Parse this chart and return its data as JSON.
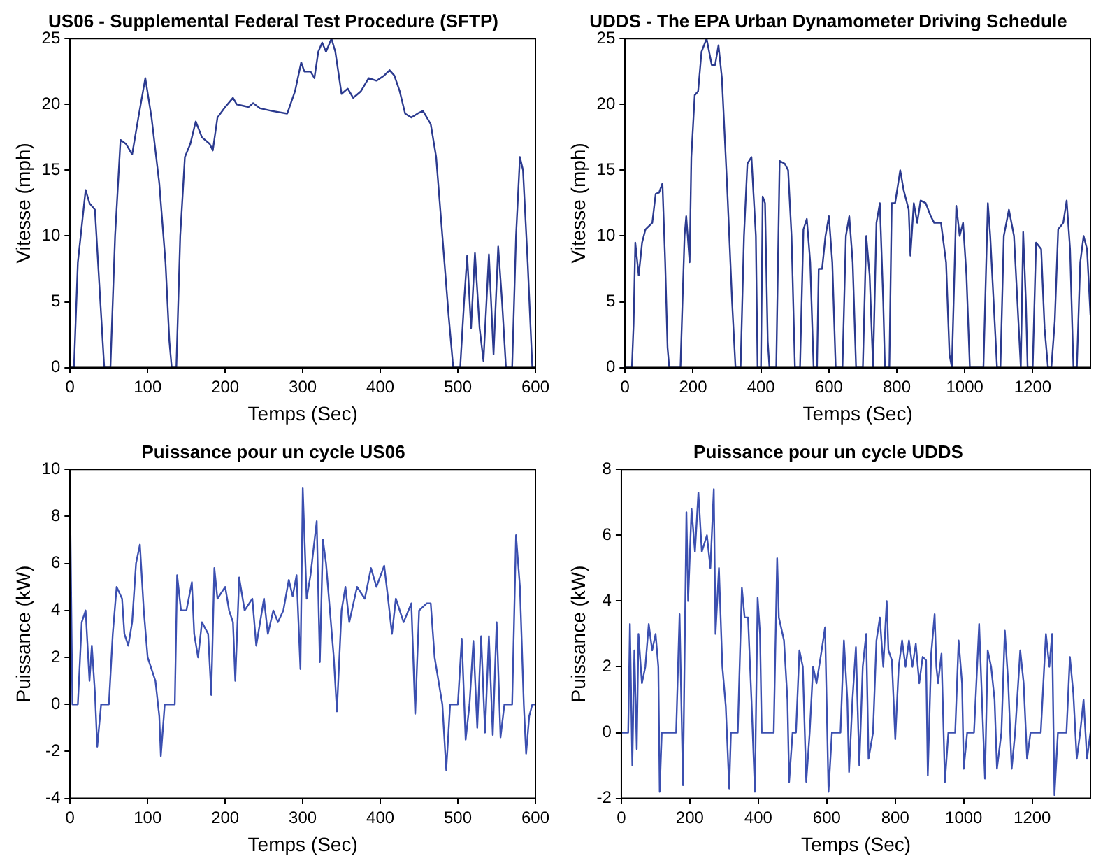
{
  "chart_data": [
    {
      "type": "line",
      "title": "US06 - Supplemental Federal Test Procedure (SFTP)",
      "xlabel": "Temps (Sec)",
      "ylabel": "Vitesse (mph)",
      "xlim": [
        0,
        600
      ],
      "xticks": [
        0,
        100,
        200,
        300,
        400,
        500,
        600
      ],
      "ylim": [
        0,
        25
      ],
      "yticks": [
        0,
        5,
        10,
        15,
        20,
        25
      ],
      "grid": false,
      "legend": false,
      "marker": "none",
      "line_style": "solid",
      "color": "#2b3a8f",
      "x": [
        0,
        5,
        10,
        20,
        25,
        32,
        40,
        44,
        52,
        58,
        65,
        72,
        80,
        88,
        97,
        105,
        115,
        123,
        128,
        131,
        137,
        142,
        148,
        155,
        162,
        170,
        180,
        184,
        190,
        200,
        210,
        215,
        230,
        236,
        245,
        260,
        280,
        290,
        298,
        302,
        310,
        315,
        320,
        325,
        330,
        337,
        342,
        350,
        358,
        365,
        375,
        385,
        395,
        405,
        412,
        418,
        425,
        432,
        440,
        448,
        455,
        465,
        472,
        480,
        488,
        494,
        503,
        508,
        512,
        517,
        522,
        528,
        533,
        540,
        546,
        552,
        557,
        562,
        570,
        575,
        580,
        584,
        590,
        596,
        600
      ],
      "values": [
        0,
        0,
        8,
        13.5,
        12.5,
        12,
        4,
        0,
        0,
        10,
        17.3,
        17,
        16.2,
        19,
        22,
        19,
        14,
        8,
        2,
        0,
        0,
        10,
        16,
        17,
        18.7,
        17.5,
        17,
        16.5,
        19,
        19.8,
        20.5,
        20,
        19.8,
        20.1,
        19.7,
        19.5,
        19.3,
        21,
        23.2,
        22.5,
        22.5,
        22,
        24,
        24.7,
        24,
        25,
        24,
        20.8,
        21.2,
        20.5,
        21,
        22,
        21.8,
        22.2,
        22.6,
        22.2,
        21,
        19.3,
        19,
        19.3,
        19.5,
        18.5,
        16,
        10,
        4,
        0,
        0,
        5,
        8.5,
        3,
        8.7,
        3,
        0.5,
        8.6,
        1,
        9.2,
        5,
        0,
        0,
        10,
        16,
        15,
        8,
        0,
        0
      ]
    },
    {
      "type": "line",
      "title": "UDDS - The EPA Urban Dynamometer Driving Schedule",
      "xlabel": "Temps (Sec)",
      "ylabel": "Vitesse (mph)",
      "xlim": [
        0,
        1370
      ],
      "xticks": [
        0,
        200,
        400,
        600,
        800,
        1000,
        1200
      ],
      "ylim": [
        0,
        25
      ],
      "yticks": [
        0,
        5,
        10,
        15,
        20,
        25
      ],
      "grid": false,
      "legend": false,
      "marker": "none",
      "line_style": "solid",
      "color": "#2b3a8f",
      "x": [
        0,
        20,
        25,
        30,
        40,
        50,
        60,
        80,
        90,
        100,
        110,
        118,
        125,
        130,
        163,
        175,
        180,
        190,
        195,
        205,
        215,
        225,
        240,
        255,
        265,
        275,
        285,
        300,
        315,
        325,
        340,
        350,
        360,
        372,
        385,
        390,
        400,
        405,
        412,
        420,
        425,
        445,
        455,
        470,
        480,
        490,
        500,
        515,
        525,
        535,
        545,
        555,
        565,
        570,
        580,
        590,
        600,
        610,
        620,
        640,
        650,
        660,
        670,
        680,
        700,
        710,
        720,
        730,
        740,
        750,
        760,
        765,
        778,
        785,
        795,
        810,
        820,
        835,
        840,
        850,
        860,
        870,
        885,
        900,
        910,
        930,
        945,
        955,
        962,
        975,
        985,
        995,
        1005,
        1015,
        1055,
        1068,
        1075,
        1085,
        1095,
        1105,
        1115,
        1130,
        1145,
        1155,
        1165,
        1172,
        1180,
        1185,
        1200,
        1210,
        1225,
        1235,
        1245,
        1255,
        1265,
        1275,
        1290,
        1300,
        1310,
        1320,
        1330,
        1340,
        1350,
        1360,
        1370
      ],
      "values": [
        0,
        0,
        3.3,
        9.5,
        7,
        9.5,
        10.5,
        11,
        13.2,
        13.3,
        14,
        8,
        1.5,
        0,
        0,
        10,
        11.5,
        8,
        16,
        20.7,
        21,
        24,
        25,
        23,
        23,
        24.5,
        22,
        14,
        5,
        0,
        0,
        10,
        15.5,
        16,
        10,
        0,
        0,
        13,
        12.5,
        2,
        0,
        0,
        15.7,
        15.5,
        15,
        10,
        0,
        0,
        10.5,
        11.3,
        8,
        0,
        0,
        7.5,
        7.5,
        10,
        11.5,
        8,
        0,
        0,
        10,
        11.5,
        8,
        0,
        0,
        10,
        7,
        0,
        11,
        12.5,
        5,
        0,
        0,
        12.5,
        12.5,
        15,
        13.5,
        12,
        8.5,
        12.5,
        11,
        12.7,
        12.5,
        11.5,
        11,
        11,
        8,
        1,
        0,
        12.3,
        10,
        11,
        7,
        0,
        0,
        12.5,
        10,
        5,
        0,
        0,
        10,
        12,
        10,
        5,
        0,
        10.3,
        5,
        0,
        0,
        9.5,
        9,
        3,
        0,
        0,
        3.5,
        10.5,
        11,
        12.7,
        9,
        0,
        0,
        8,
        10,
        9,
        4
      ]
    },
    {
      "type": "line",
      "title": "Puissance pour un cycle US06",
      "xlabel": "Temps (Sec)",
      "ylabel": "Puissance (kW)",
      "xlim": [
        0,
        600
      ],
      "xticks": [
        0,
        100,
        200,
        300,
        400,
        500,
        600
      ],
      "ylim": [
        -4,
        10
      ],
      "yticks": [
        -4,
        -2,
        0,
        2,
        4,
        6,
        8,
        10
      ],
      "grid": false,
      "legend": false,
      "marker": "none",
      "line_style": "solid",
      "color": "#3b4fb0",
      "x": [
        0,
        3,
        10,
        15,
        20,
        25,
        28,
        32,
        35,
        40,
        50,
        55,
        60,
        67,
        70,
        75,
        80,
        85,
        90,
        95,
        100,
        105,
        110,
        115,
        117,
        122,
        135,
        138,
        143,
        150,
        157,
        160,
        165,
        170,
        178,
        182,
        186,
        190,
        200,
        205,
        210,
        213,
        218,
        225,
        235,
        240,
        250,
        255,
        262,
        268,
        275,
        282,
        287,
        292,
        297,
        300,
        305,
        310,
        318,
        322,
        326,
        330,
        335,
        340,
        344,
        350,
        355,
        360,
        370,
        380,
        388,
        395,
        405,
        410,
        415,
        420,
        430,
        440,
        445,
        450,
        460,
        465,
        470,
        475,
        480,
        485,
        490,
        500,
        505,
        510,
        515,
        520,
        525,
        530,
        535,
        540,
        545,
        550,
        555,
        560,
        570,
        575,
        580,
        585,
        588,
        592,
        596,
        600
      ],
      "values": [
        8.6,
        0,
        0,
        3.5,
        4,
        1,
        2.5,
        0.5,
        -1.8,
        0,
        0,
        3,
        5,
        4.5,
        3,
        2.5,
        3.5,
        6,
        6.8,
        4,
        2,
        1.5,
        1,
        -0.5,
        -2.2,
        0,
        0,
        5.5,
        4,
        4,
        5.2,
        3,
        2,
        3.5,
        3,
        0.4,
        5.8,
        4.5,
        5,
        4,
        3.5,
        1,
        5.4,
        4,
        4.5,
        2.5,
        4.5,
        3,
        4,
        3.5,
        4,
        5.3,
        4.6,
        5.5,
        1.5,
        9.2,
        4.5,
        5.5,
        7.8,
        1.8,
        7,
        6,
        4,
        2,
        -0.3,
        4,
        5,
        3.5,
        5,
        4.5,
        5.8,
        5,
        5.9,
        4.5,
        3,
        4.5,
        3.5,
        4.3,
        -0.4,
        4,
        4.3,
        4.3,
        2,
        1,
        0,
        -2.8,
        0,
        0,
        2.8,
        -1.5,
        0,
        2.7,
        -1,
        2.9,
        -1.2,
        2.9,
        -1.3,
        3.5,
        -1.4,
        0,
        0,
        7.2,
        5,
        0,
        -2.1,
        -0.5,
        0,
        0
      ]
    },
    {
      "type": "line",
      "title": "Puissance pour un cycle UDDS",
      "xlabel": "Temps (Sec)",
      "ylabel": "Puissance (kW)",
      "xlim": [
        0,
        1370
      ],
      "xticks": [
        0,
        200,
        400,
        600,
        800,
        1000,
        1200
      ],
      "ylim": [
        -2,
        8
      ],
      "yticks": [
        -2,
        0,
        2,
        4,
        6,
        8
      ],
      "grid": false,
      "legend": false,
      "marker": "none",
      "line_style": "solid",
      "color": "#3b4fb0",
      "x": [
        0,
        20,
        25,
        32,
        38,
        45,
        50,
        60,
        70,
        80,
        90,
        100,
        108,
        112,
        118,
        160,
        170,
        180,
        190,
        195,
        205,
        215,
        225,
        235,
        250,
        260,
        270,
        275,
        285,
        295,
        305,
        315,
        320,
        340,
        352,
        360,
        370,
        380,
        390,
        398,
        405,
        410,
        445,
        455,
        460,
        475,
        485,
        490,
        500,
        510,
        520,
        530,
        540,
        550,
        560,
        570,
        585,
        595,
        605,
        615,
        640,
        650,
        660,
        665,
        675,
        685,
        695,
        705,
        715,
        722,
        735,
        745,
        755,
        765,
        775,
        780,
        790,
        800,
        810,
        820,
        830,
        840,
        850,
        860,
        870,
        880,
        890,
        895,
        905,
        915,
        920,
        925,
        935,
        945,
        955,
        975,
        985,
        995,
        1000,
        1010,
        1030,
        1045,
        1055,
        1062,
        1070,
        1080,
        1090,
        1097,
        1110,
        1120,
        1130,
        1140,
        1150,
        1165,
        1175,
        1185,
        1195,
        1225,
        1240,
        1250,
        1258,
        1265,
        1275,
        1300,
        1310,
        1320,
        1330,
        1340,
        1350,
        1360,
        1370
      ],
      "values": [
        0,
        0,
        3.3,
        -1,
        2.5,
        -0.5,
        3,
        1.5,
        2,
        3.3,
        2.5,
        3,
        2,
        -1.8,
        0,
        0,
        3.6,
        -1.6,
        6.7,
        4,
        6.8,
        5.5,
        7.3,
        5.5,
        6,
        5,
        7.4,
        3,
        5,
        2,
        0.8,
        -1.7,
        0,
        0,
        4.4,
        3.5,
        3.5,
        1,
        -1.8,
        4.1,
        3,
        0,
        0,
        5.3,
        3.5,
        2.8,
        1,
        -1.5,
        0,
        0,
        2.5,
        2,
        -1.5,
        0,
        2,
        1.5,
        2.5,
        3.2,
        -1.8,
        0,
        0,
        2.8,
        1,
        -1.2,
        1,
        2.6,
        -1,
        2,
        3,
        -0.8,
        0,
        2.8,
        3.5,
        2,
        4,
        2.5,
        2.2,
        -0.2,
        2,
        2.8,
        2,
        2.8,
        2,
        2.7,
        1.5,
        2.3,
        2.2,
        -1.3,
        2.4,
        3.6,
        2,
        1.5,
        2.4,
        -1.5,
        0,
        0,
        2.8,
        1.5,
        -1.1,
        0,
        0,
        3.3,
        0.5,
        -1.4,
        2.5,
        2,
        1,
        -1.1,
        0,
        3.1,
        1.5,
        -1.1,
        0,
        2.5,
        1.5,
        -0.8,
        0,
        0,
        3,
        2,
        3,
        -1.9,
        0,
        0,
        2.3,
        1.2,
        -0.8,
        0,
        1,
        -0.8,
        0
      ]
    }
  ]
}
